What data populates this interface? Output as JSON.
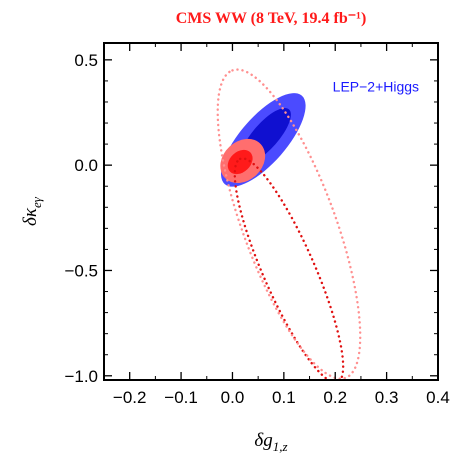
{
  "chart_data": {
    "type": "contour",
    "title": "CMS WW (8 TeV, 19.4 fb⁻¹)",
    "xlabel": "δg1,z",
    "ylabel": "δκeγ",
    "xlim": [
      -0.25,
      0.4
    ],
    "ylim": [
      -1.02,
      0.58
    ],
    "x_ticks": [
      -0.2,
      -0.1,
      0.0,
      0.1,
      0.2,
      0.3,
      0.4
    ],
    "x_tick_labels": [
      "−0.2",
      "−0.1",
      "0.0",
      "0.1",
      "0.2",
      "0.3",
      "0.4"
    ],
    "y_ticks": [
      0.5,
      0.0,
      -0.5,
      -1.0
    ],
    "y_tick_labels": [
      "0.5",
      "0.0",
      "−0.5",
      "−1.0"
    ],
    "grid": false,
    "annotations": [
      {
        "text": "LEP−2+Higgs",
        "x": 0.195,
        "y": 0.35,
        "color": "#1a1aff"
      }
    ],
    "series": [
      {
        "name": "LEP−2+Higgs",
        "style": "filled",
        "regions": [
          {
            "level": "outer",
            "color": "#4b4bff",
            "center": [
              0.06,
              0.12
            ],
            "axis_points": [
              [
                0.135,
                0.33
              ],
              [
                -0.015,
                -0.09
              ]
            ],
            "half_width": 0.045
          },
          {
            "level": "inner",
            "color": "#1010d0",
            "center": [
              0.065,
              0.14
            ],
            "axis_points": [
              [
                0.11,
                0.26
              ],
              [
                0.02,
                0.01
              ]
            ],
            "half_width": 0.025
          }
        ]
      },
      {
        "name": "CMS WW",
        "style": "filled",
        "regions": [
          {
            "level": "outer",
            "color": "#ff6e6e",
            "center": [
              0.02,
              0.02
            ],
            "axis_points": [
              [
                0.055,
                0.1
              ],
              [
                -0.015,
                -0.06
              ]
            ],
            "half_width": 0.038
          },
          {
            "level": "inner",
            "color": "#ff1a1a",
            "center": [
              0.015,
              0.015
            ],
            "axis_points": [
              [
                0.035,
                0.06
              ],
              [
                -0.005,
                -0.03
              ]
            ],
            "half_width": 0.02
          }
        ]
      },
      {
        "name": "CMS WW",
        "style": "dotted",
        "regions": [
          {
            "level": "inner",
            "color": "#e01010",
            "center": [
              0.11,
              -0.5
            ],
            "axis_points": [
              [
                0.015,
                0.03
              ],
              [
                0.205,
                -1.03
              ]
            ],
            "half_width": 0.05
          },
          {
            "level": "outer",
            "color": "#ff9090",
            "center": [
              0.11,
              -0.28
            ],
            "axis_points": [
              [
                0.0,
                0.45
              ],
              [
                0.22,
                -1.01
              ]
            ],
            "half_width": 0.09
          }
        ]
      }
    ]
  }
}
